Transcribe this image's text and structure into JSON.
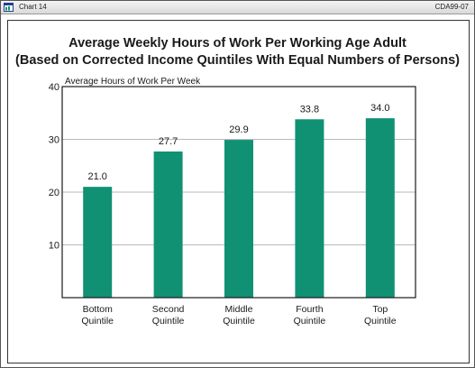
{
  "window": {
    "title": "Chart 14",
    "code": "CDA99-07"
  },
  "colors": {
    "bar": "#119174",
    "grid": "#b9b9b9",
    "axis": "#1a1a1a"
  },
  "chart_data": {
    "type": "bar",
    "title": "Average Weekly Hours of Work Per Working Age Adult",
    "subtitle": "(Based on Corrected Income Quintiles With Equal Numbers of Persons)",
    "ylabel": "Average Hours of Work Per Week",
    "xlabel": "",
    "ylim": [
      0,
      40
    ],
    "yticks": [
      10,
      20,
      30,
      40
    ],
    "grid": true,
    "categories": [
      [
        "Bottom",
        "Quintile"
      ],
      [
        "Second",
        "Quintile"
      ],
      [
        "Middle",
        "Quintile"
      ],
      [
        "Fourth",
        "Quintile"
      ],
      [
        "Top",
        "Quintile"
      ]
    ],
    "values": [
      21.0,
      27.7,
      29.9,
      33.8,
      34.0
    ],
    "value_labels": [
      "21.0",
      "27.7",
      "29.9",
      "33.8",
      "34.0"
    ]
  }
}
